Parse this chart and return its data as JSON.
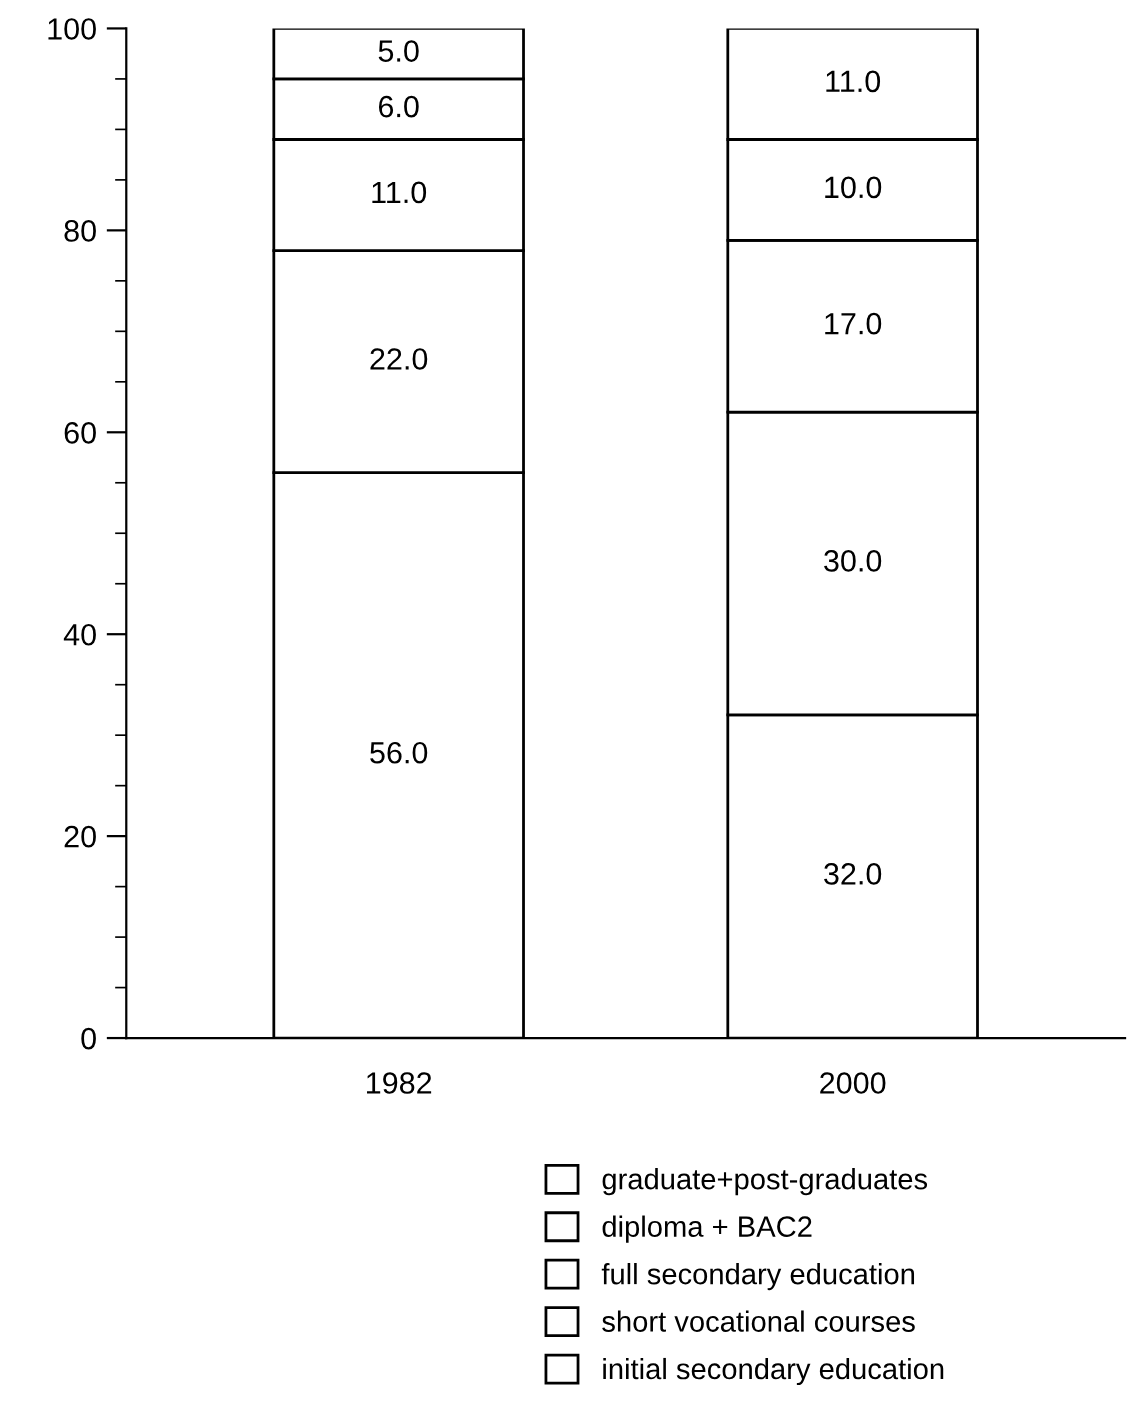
{
  "chart_data": {
    "type": "bar",
    "stacked": true,
    "categories": [
      "1982",
      "2000"
    ],
    "series": [
      {
        "name": "initial secondary education",
        "color": "#ffffff",
        "values": [
          56,
          32
        ],
        "value_labels": [
          "56.0",
          "32.0"
        ]
      },
      {
        "name": "short vocational courses",
        "color": "#ffffff",
        "values": [
          22,
          30
        ],
        "value_labels": [
          "22.0",
          "30.0"
        ]
      },
      {
        "name": "full secondary education",
        "color": "#ffffff",
        "values": [
          11,
          17
        ],
        "value_labels": [
          "11.0",
          "17.0"
        ]
      },
      {
        "name": "diploma + BAC2",
        "color": "#ffffff",
        "values": [
          6,
          10
        ],
        "value_labels": [
          "6.0",
          "10.0"
        ]
      },
      {
        "name": "graduate+post-graduates",
        "color": "#ffffff",
        "values": [
          5,
          11
        ],
        "value_labels": [
          "5.0",
          "11.0"
        ]
      }
    ],
    "ylim": [
      0,
      100
    ],
    "yticks": [
      0,
      {
        "value": 5,
        "label": null
      },
      {
        "value": 10,
        "label": null
      },
      {
        "value": 15,
        "label": null
      },
      20,
      {
        "value": 25,
        "label": null
      },
      {
        "value": 30,
        "label": null
      },
      {
        "value": 35,
        "label": null
      },
      40,
      {
        "value": 45,
        "label": null
      },
      {
        "value": 50,
        "label": null
      },
      {
        "value": 55,
        "label": null
      },
      60,
      {
        "value": 65,
        "label": null
      },
      {
        "value": 70,
        "label": null
      },
      {
        "value": 75,
        "label": null
      },
      80,
      {
        "value": 85,
        "label": null
      },
      {
        "value": 90,
        "label": null
      },
      {
        "value": 95,
        "label": null
      },
      100
    ],
    "grid": false,
    "legend": "bottom"
  }
}
